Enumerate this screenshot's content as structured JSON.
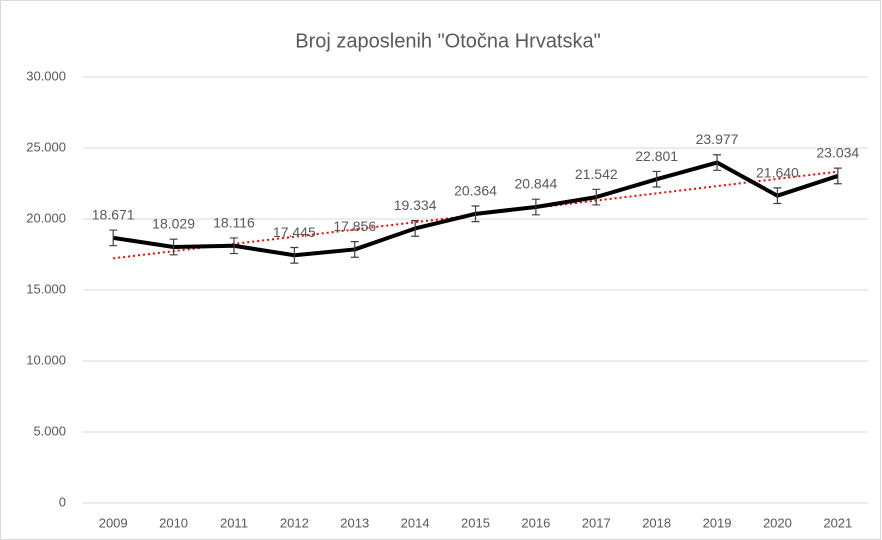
{
  "chart_data": {
    "type": "line",
    "title": "Broj zaposlenih \"Otočna Hrvatska\"",
    "categories": [
      "2009",
      "2010",
      "2011",
      "2012",
      "2013",
      "2014",
      "2015",
      "2016",
      "2017",
      "2018",
      "2019",
      "2020",
      "2021"
    ],
    "series": [
      {
        "color": "#000000",
        "values": [
          18671,
          18029,
          18116,
          17445,
          17856,
          19334,
          20364,
          20844,
          21542,
          22801,
          23977,
          21640,
          23034
        ],
        "value_labels": [
          "18.671",
          "18.029",
          "18.116",
          "17.445",
          "17.856",
          "19.334",
          "20.364",
          "20.844",
          "21.542",
          "22.801",
          "23.977",
          "21.640",
          "23.034"
        ],
        "errors": [
          550,
          550,
          550,
          550,
          550,
          550,
          550,
          550,
          550,
          550,
          550,
          550,
          550
        ]
      }
    ],
    "trendline": {
      "type": "linear",
      "color": "#ff0000"
    },
    "ylim": [
      0,
      30000
    ],
    "yticks": [
      0,
      {
        "value": 5000,
        "label": "5.000"
      },
      {
        "value": 10000,
        "label": "10.000"
      },
      {
        "value": 15000,
        "label": "15.000"
      },
      {
        "value": 20000,
        "label": "20.000"
      },
      {
        "value": 25000,
        "label": "25.000"
      },
      {
        "value": 30000,
        "label": "30.000"
      }
    ],
    "grid": true
  }
}
